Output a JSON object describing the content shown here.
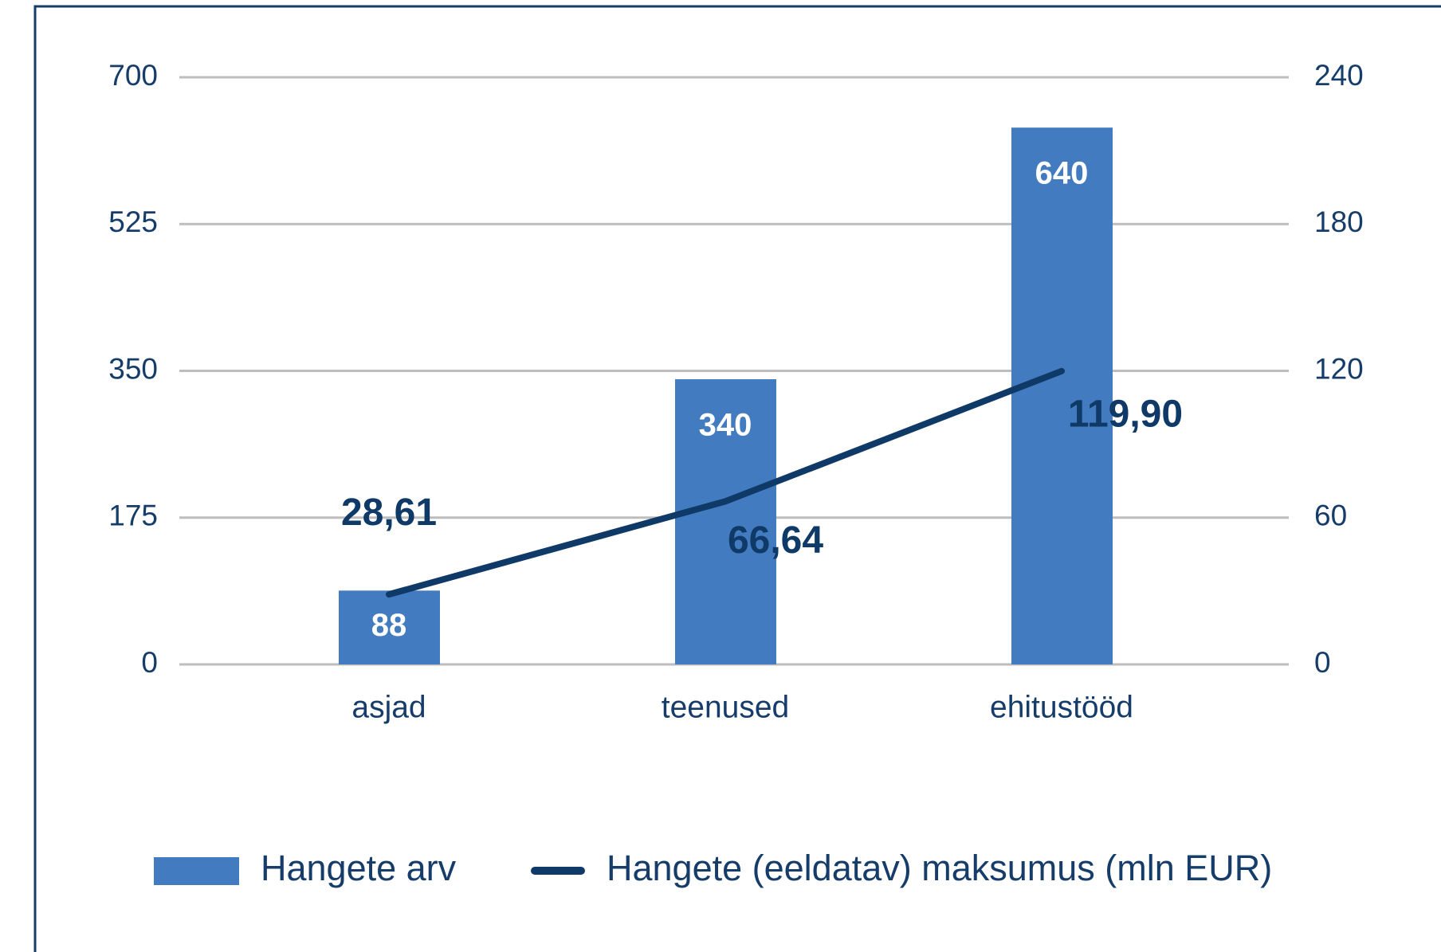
{
  "chart_data": {
    "type": "bar",
    "categories": [
      "asjad",
      "teenused",
      "ehitustööd"
    ],
    "series": [
      {
        "name": "Hangete arv",
        "type": "bar",
        "color": "#427bbf",
        "values": [
          88,
          340,
          640
        ]
      },
      {
        "name": "Hangete (eeldatav) maksumus (mln EUR)",
        "type": "line",
        "axis": "y2",
        "color": "#0f3a68",
        "values": [
          28.61,
          66.64,
          119.9
        ],
        "value_labels": [
          "28,61",
          "66,64",
          "119,90"
        ]
      }
    ],
    "ylim": [
      0,
      700
    ],
    "yticks": [
      0,
      175,
      350,
      525,
      700
    ],
    "y2lim": [
      0,
      240
    ],
    "y2ticks": [
      0,
      60,
      120,
      180,
      240
    ],
    "grid": true,
    "legend": "bottom"
  }
}
